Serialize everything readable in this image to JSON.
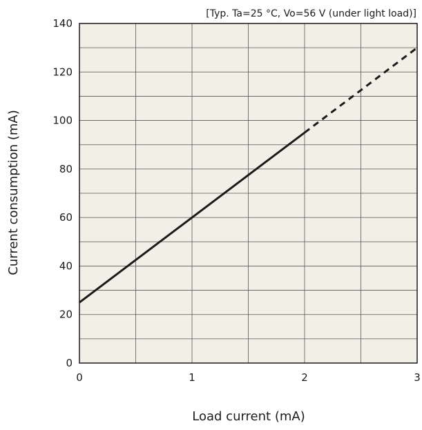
{
  "chart_data": {
    "type": "line",
    "note": "[Typ. Ta=25 °C, Vo=56 V (under light load)]",
    "xlabel": "Load current (mA)",
    "ylabel": "Current consumption (mA)",
    "xlim": [
      0,
      3
    ],
    "ylim": [
      0,
      140
    ],
    "x_ticks": [
      "0",
      "1",
      "2",
      "3"
    ],
    "y_ticks": [
      "0",
      "20",
      "40",
      "60",
      "80",
      "100",
      "120",
      "140"
    ],
    "grid": true,
    "background_color": "#f2efe6",
    "line_color": "#1a1a1a",
    "series": [
      {
        "style": "solid",
        "x": [
          0,
          1,
          2
        ],
        "y": [
          25,
          60,
          95
        ]
      },
      {
        "style": "dashed",
        "x": [
          2,
          3
        ],
        "y": [
          95,
          130
        ]
      }
    ]
  }
}
